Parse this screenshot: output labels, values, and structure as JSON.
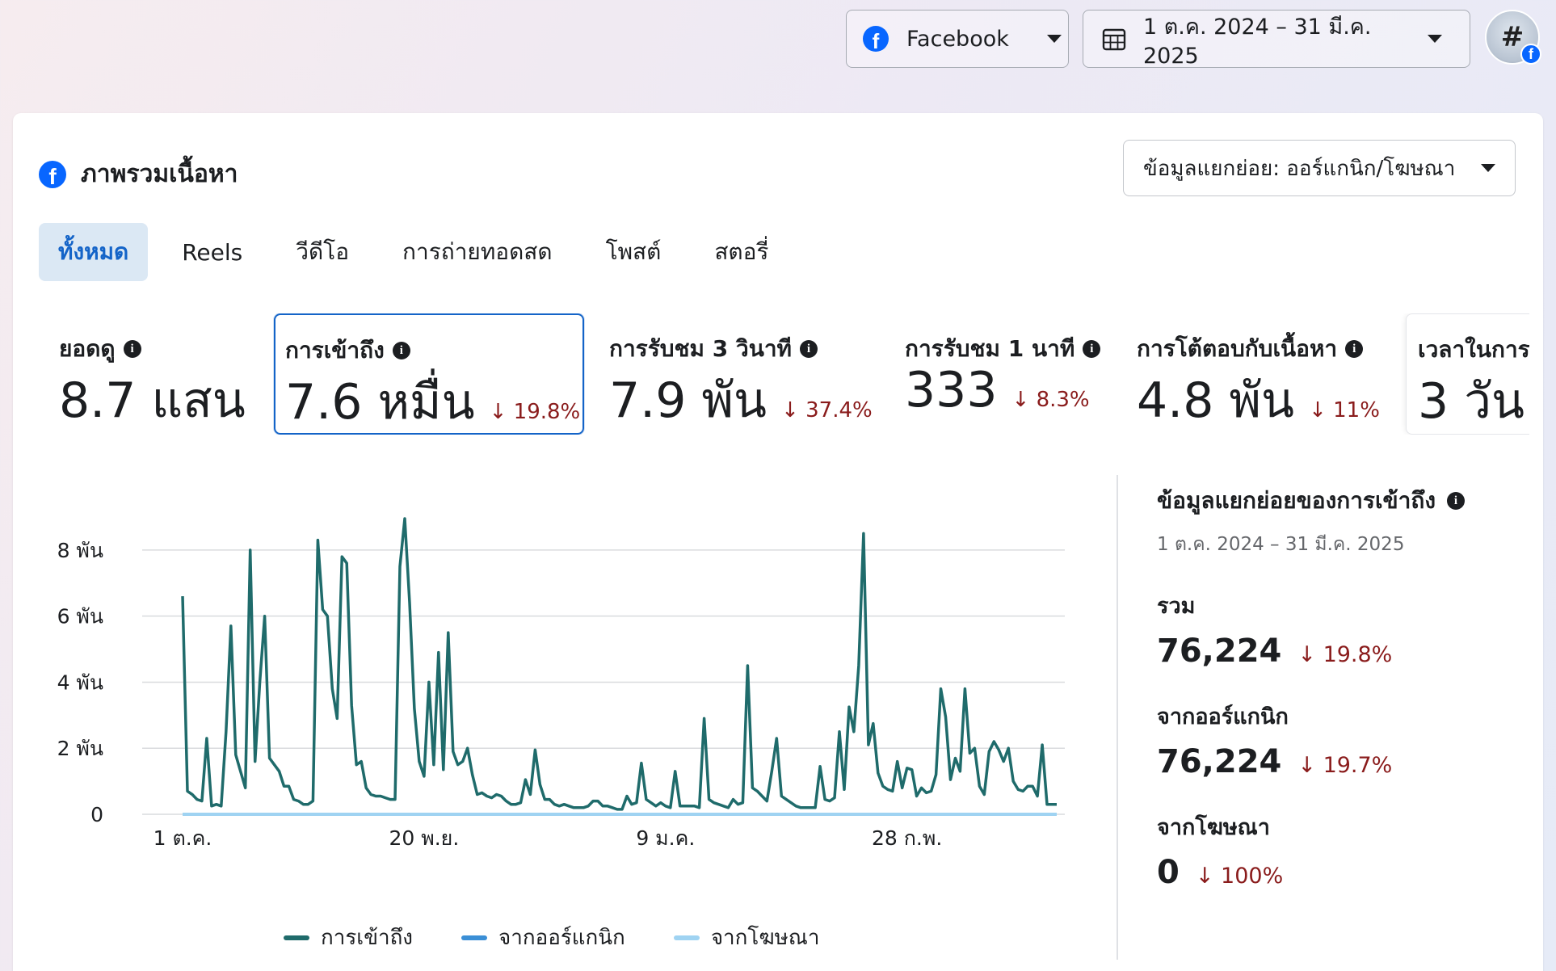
{
  "topbar": {
    "platform_label": "Facebook",
    "date_range": "1 ต.ค. 2024 – 31 มี.ค. 2025",
    "avatar_glyph": "#"
  },
  "card": {
    "title": "ภาพรวมเนื้อหา",
    "breakdown_select": "ข้อมูลแยกย่อย: ออร์แกนิก/โฆษณา"
  },
  "tabs": [
    "ทั้งหมด",
    "Reels",
    "วีดีโอ",
    "การถ่ายทอดสด",
    "โพสต์",
    "สตอรี่"
  ],
  "metrics": [
    {
      "label": "ยอดดู",
      "value": "8.7 แสน",
      "delta": ""
    },
    {
      "label": "การเข้าถึง",
      "value": "7.6 หมื่น",
      "delta": "↓ 19.8%"
    },
    {
      "label": "การรับชม 3 วินาที",
      "value": "7.9 พัน",
      "delta": "↓ 37.4%"
    },
    {
      "label": "การรับชม 1 นาที",
      "value": "333",
      "delta": "↓ 8.3%"
    },
    {
      "label": "การโต้ตอบกับเนื้อหา",
      "value": "4.8 พัน",
      "delta": "↓ 11%"
    },
    {
      "label": "เวลาในการ",
      "value": "3 วัน",
      "delta": ""
    }
  ],
  "side": {
    "title": "ข้อมูลแยกย่อยของการเข้าถึง",
    "range": "1 ต.ค. 2024 – 31 มี.ค. 2025",
    "total_label": "รวม",
    "total_value": "76,224",
    "total_delta": "↓ 19.8%",
    "organic_label": "จากออร์แกนิก",
    "organic_value": "76,224",
    "organic_delta": "↓ 19.7%",
    "ads_label": "จากโฆษณา",
    "ads_value": "0",
    "ads_delta": "↓ 100%"
  },
  "colors": {
    "reach": "#1f6b6b",
    "organic": "#3b8fd6",
    "ads": "#9fd3f2",
    "decline": "#8a1c1c",
    "accent": "#1464c8"
  },
  "chart_data": {
    "type": "line",
    "x_ticks": [
      "1 ต.ค.",
      "20 พ.ย.",
      "9 ม.ค.",
      "28 ก.พ."
    ],
    "y_ticks": [
      "0",
      "2 พัน",
      "4 พัน",
      "6 พัน",
      "8 พัน"
    ],
    "ylim": [
      0,
      9000
    ],
    "grid": true,
    "legend_position": "bottom",
    "series": [
      {
        "name": "การเข้าถึง",
        "color": "#1f6b6b",
        "values": [
          6600,
          700,
          600,
          450,
          400,
          2300,
          250,
          300,
          250,
          2500,
          5700,
          1800,
          1300,
          800,
          8000,
          1600,
          4000,
          6000,
          1700,
          1500,
          1300,
          850,
          850,
          450,
          400,
          300,
          300,
          400,
          8300,
          6200,
          6000,
          3800,
          2900,
          7800,
          7600,
          3300,
          1500,
          1600,
          800,
          600,
          550,
          550,
          500,
          450,
          450,
          7500,
          8950,
          6400,
          3200,
          1600,
          1150,
          4000,
          1500,
          4900,
          1350,
          5500,
          1900,
          1500,
          1600,
          2000,
          1200,
          600,
          650,
          550,
          500,
          600,
          550,
          400,
          300,
          300,
          350,
          1050,
          600,
          1950,
          900,
          450,
          450,
          300,
          250,
          300,
          250,
          200,
          200,
          200,
          250,
          400,
          400,
          250,
          250,
          200,
          150,
          150,
          550,
          300,
          350,
          1550,
          450,
          350,
          250,
          350,
          250,
          200,
          1300,
          250,
          250,
          250,
          250,
          200,
          2900,
          450,
          350,
          300,
          250,
          200,
          450,
          300,
          350,
          4500,
          800,
          700,
          550,
          400,
          1300,
          2300,
          550,
          450,
          350,
          250,
          200,
          200,
          200,
          200,
          1450,
          450,
          400,
          500,
          2500,
          750,
          3250,
          2500,
          4500,
          8500,
          2100,
          2750,
          1250,
          850,
          750,
          700,
          1600,
          800,
          1400,
          1350,
          550,
          800,
          650,
          700,
          1200,
          3800,
          2950,
          1050,
          1700,
          1300,
          3800,
          1850,
          2000,
          850,
          600,
          1900,
          2200,
          1950,
          1600,
          2000,
          1000,
          750,
          700,
          850,
          850,
          550,
          2100,
          300,
          300,
          300
        ]
      },
      {
        "name": "จากออร์แกนิก",
        "color": "#3b8fd6",
        "values": []
      },
      {
        "name": "จากโฆษณา",
        "color": "#9fd3f2",
        "values": [
          0
        ]
      }
    ]
  }
}
